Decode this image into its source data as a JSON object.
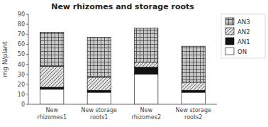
{
  "chart_data": {
    "type": "bar",
    "stacked": true,
    "title": "New rhizomes and storage roots",
    "ylabel": "mg N/plant",
    "categories": [
      "New\nrhizomes1",
      "New storage\nroots1",
      "New\nrhizomes2",
      "New storage\nroots2"
    ],
    "series": [
      {
        "name": "ON",
        "color": "#ffffff",
        "values": [
          15,
          12,
          30,
          12
        ]
      },
      {
        "name": "AN1",
        "color": "#111111",
        "values": [
          2,
          2,
          7,
          2
        ]
      },
      {
        "name": "AN2",
        "color": "#e0e0e0",
        "values": [
          21,
          13,
          5,
          8
        ]
      },
      {
        "name": "AN3",
        "color": "#c8c8c8",
        "values": [
          34,
          40,
          34,
          36
        ]
      }
    ],
    "ylim": [
      0,
      90
    ],
    "yticks": [
      0,
      10,
      20,
      30,
      40,
      50,
      60,
      70,
      80,
      90
    ],
    "grid": false,
    "legend": "upper right"
  }
}
